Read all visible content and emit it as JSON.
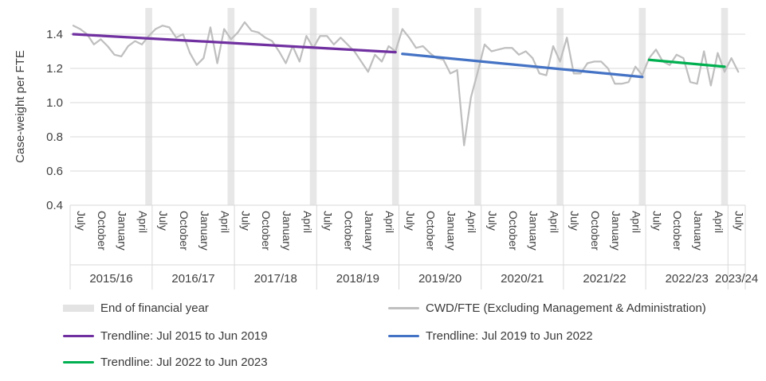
{
  "chart_data": {
    "type": "line",
    "title": "",
    "ylabel": "Case-weight per FTE",
    "ylim": [
      0.4,
      1.55
    ],
    "yticks": [
      1.4,
      1.2,
      1.0,
      0.8,
      0.6,
      0.4
    ],
    "x_start": "July 2015",
    "x_end": "August 2023",
    "x_frequency": "monthly",
    "month_tick_labels": [
      "July",
      "October",
      "January",
      "April"
    ],
    "year_groups": [
      "2015/16",
      "2016/17",
      "2017/18",
      "2018/19",
      "2019/20",
      "2020/21",
      "2021/22",
      "2022/23",
      "2023/24"
    ],
    "grid": "horizontal",
    "series": [
      {
        "name": "CWD/FTE (Excluding Management & Administration)",
        "type": "line",
        "color": "#BFBFBF",
        "values": [
          1.45,
          1.43,
          1.4,
          1.34,
          1.37,
          1.33,
          1.28,
          1.27,
          1.33,
          1.36,
          1.34,
          1.39,
          1.43,
          1.45,
          1.44,
          1.38,
          1.4,
          1.29,
          1.22,
          1.26,
          1.44,
          1.23,
          1.43,
          1.37,
          1.41,
          1.47,
          1.42,
          1.41,
          1.38,
          1.36,
          1.3,
          1.23,
          1.33,
          1.24,
          1.39,
          1.32,
          1.39,
          1.39,
          1.34,
          1.38,
          1.34,
          1.3,
          1.24,
          1.18,
          1.28,
          1.24,
          1.33,
          1.3,
          1.43,
          1.38,
          1.32,
          1.33,
          1.29,
          1.26,
          1.25,
          1.17,
          1.19,
          0.75,
          1.03,
          1.18,
          1.34,
          1.3,
          1.31,
          1.32,
          1.32,
          1.28,
          1.3,
          1.26,
          1.17,
          1.16,
          1.33,
          1.24,
          1.38,
          1.17,
          1.17,
          1.23,
          1.24,
          1.24,
          1.2,
          1.11,
          1.11,
          1.12,
          1.21,
          1.16,
          1.26,
          1.31,
          1.24,
          1.22,
          1.28,
          1.26,
          1.12,
          1.11,
          1.3,
          1.1,
          1.29,
          1.18,
          1.26,
          1.18
        ]
      },
      {
        "name": "Trendline: Jul 2015 to Jun 2019",
        "type": "trendline",
        "color": "#7030A0",
        "start_month_index": 0,
        "end_month_index": 47,
        "start_value": 1.4,
        "end_value": 1.295
      },
      {
        "name": "Trendline: Jul 2019 to Jun 2022",
        "type": "trendline",
        "color": "#4472C4",
        "start_month_index": 48,
        "end_month_index": 83,
        "start_value": 1.285,
        "end_value": 1.15
      },
      {
        "name": "Trendline: Jul 2022 to Jun 2023",
        "type": "trendline",
        "color": "#00B050",
        "start_month_index": 84,
        "end_month_index": 95,
        "start_value": 1.25,
        "end_value": 1.21
      }
    ],
    "end_of_year_band": {
      "label": "End of financial year",
      "color": "#E7E7E7",
      "month_indices": [
        11,
        23,
        35,
        47,
        59,
        71,
        83,
        95
      ]
    },
    "axis_color": "#D9D9D9",
    "text_color": "#404040",
    "legend_position": "bottom"
  },
  "legend": {
    "items": [
      {
        "label": "End of financial year",
        "color": "#E3E3E3",
        "swatch": "band"
      },
      {
        "label": "CWD/FTE (Excluding Management & Administration)",
        "color": "#BFBFBF",
        "swatch": "line"
      },
      {
        "label": "Trendline: Jul 2015 to Jun 2019",
        "color": "#7030A0",
        "swatch": "line"
      },
      {
        "label": "Trendline: Jul 2019 to Jun 2022",
        "color": "#4472C4",
        "swatch": "line"
      },
      {
        "label": "Trendline: Jul 2022 to Jun 2023",
        "color": "#00B050",
        "swatch": "line"
      }
    ]
  }
}
